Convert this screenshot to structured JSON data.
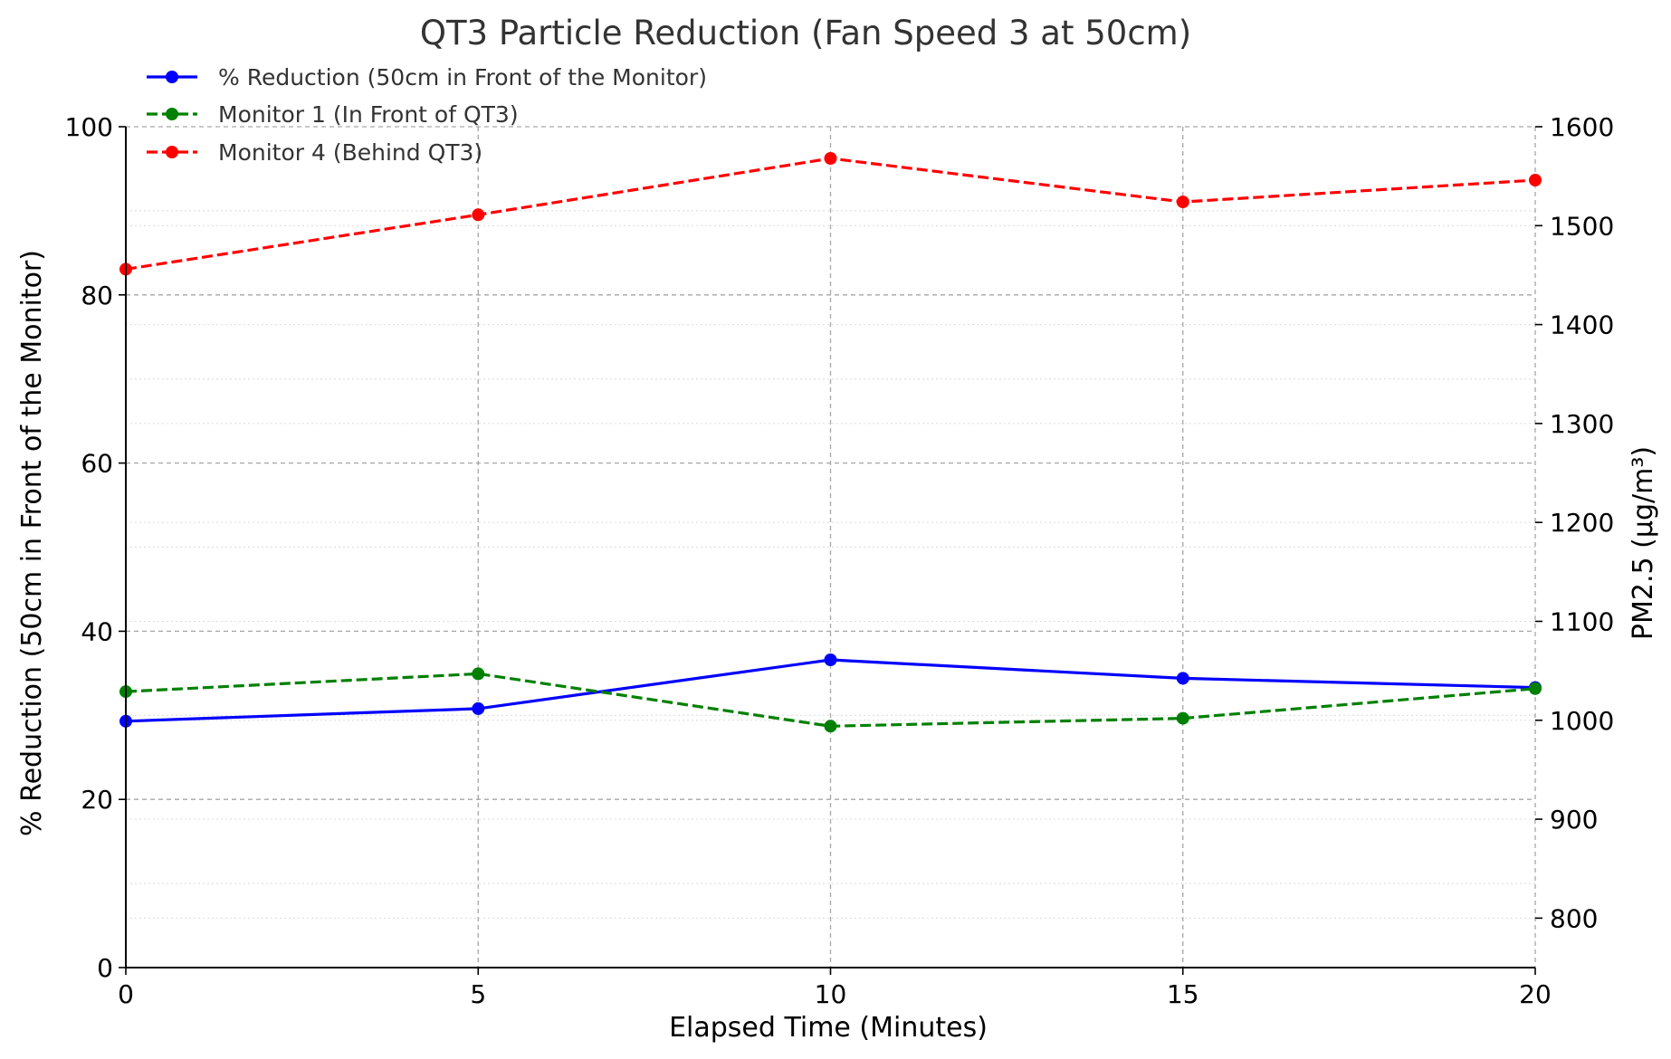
{
  "chart_data": {
    "type": "line",
    "title": "QT3 Particle Reduction (Fan Speed 3 at 50cm)",
    "xlabel": "Elapsed Time (Minutes)",
    "ylabel": "% Reduction (50cm in Front of the Monitor)",
    "y2label": "PM2.5 (µg/m³)",
    "x": [
      0,
      5,
      10,
      15,
      20
    ],
    "xlim": [
      0,
      20
    ],
    "ylim": [
      0,
      100
    ],
    "y2lim": [
      750,
      1600
    ],
    "xticks": [
      0,
      5,
      10,
      15,
      20
    ],
    "yticks": [
      0,
      20,
      40,
      60,
      80,
      100
    ],
    "y2ticks": [
      800,
      900,
      1000,
      1100,
      1200,
      1300,
      1400,
      1500,
      1600
    ],
    "grid": true,
    "legend_position": "top-left",
    "series": [
      {
        "name": "% Reduction (50cm in Front of the Monitor)",
        "axis": "left",
        "color": "#0000ff",
        "linestyle": "solid",
        "values": [
          29.3,
          30.8,
          36.6,
          34.4,
          33.3
        ]
      },
      {
        "name": "Monitor 1 (In Front of QT3)",
        "axis": "right",
        "color": "#008000",
        "linestyle": "dashed",
        "values": [
          1029,
          1047,
          994,
          1002,
          1032
        ]
      },
      {
        "name": "Monitor 4 (Behind QT3)",
        "axis": "right",
        "color": "#ff0000",
        "linestyle": "dashed",
        "values": [
          1456,
          1511,
          1568,
          1524,
          1546
        ]
      }
    ]
  }
}
